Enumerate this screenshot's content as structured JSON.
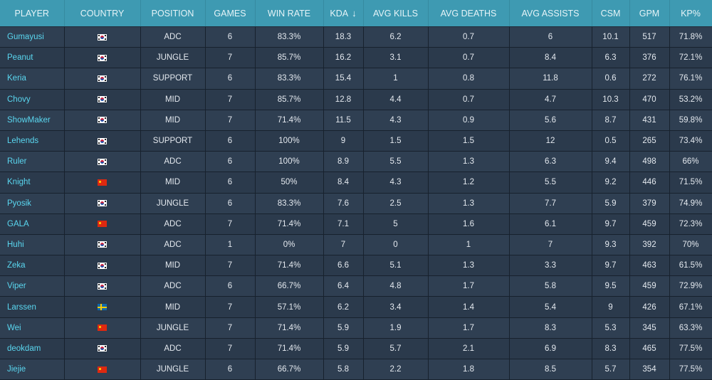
{
  "colors": {
    "header_bg": "#3e9ab2",
    "body_bg": "#2b3a4c",
    "player_link": "#5ad7f0"
  },
  "columns": [
    {
      "key": "player",
      "label": "PLAYER"
    },
    {
      "key": "country",
      "label": "COUNTRY"
    },
    {
      "key": "position",
      "label": "POSITION"
    },
    {
      "key": "games",
      "label": "GAMES"
    },
    {
      "key": "win_rate",
      "label": "WIN RATE"
    },
    {
      "key": "kda",
      "label": "KDA",
      "sort": "↓"
    },
    {
      "key": "avg_kills",
      "label": "AVG KILLS"
    },
    {
      "key": "avg_deaths",
      "label": "AVG DEATHS"
    },
    {
      "key": "avg_assists",
      "label": "AVG ASSISTS"
    },
    {
      "key": "csm",
      "label": "CSM"
    },
    {
      "key": "gpm",
      "label": "GPM"
    },
    {
      "key": "kp",
      "label": "KP%"
    }
  ],
  "rows": [
    {
      "player": "Gumayusi",
      "flag": "kr",
      "position": "ADC",
      "games": "6",
      "win_rate": "83.3%",
      "kda": "18.3",
      "avg_kills": "6.2",
      "avg_deaths": "0.7",
      "avg_assists": "6",
      "csm": "10.1",
      "gpm": "517",
      "kp": "71.8%"
    },
    {
      "player": "Peanut",
      "flag": "kr",
      "position": "JUNGLE",
      "games": "7",
      "win_rate": "85.7%",
      "kda": "16.2",
      "avg_kills": "3.1",
      "avg_deaths": "0.7",
      "avg_assists": "8.4",
      "csm": "6.3",
      "gpm": "376",
      "kp": "72.1%"
    },
    {
      "player": "Keria",
      "flag": "kr",
      "position": "SUPPORT",
      "games": "6",
      "win_rate": "83.3%",
      "kda": "15.4",
      "avg_kills": "1",
      "avg_deaths": "0.8",
      "avg_assists": "11.8",
      "csm": "0.6",
      "gpm": "272",
      "kp": "76.1%"
    },
    {
      "player": "Chovy",
      "flag": "kr",
      "position": "MID",
      "games": "7",
      "win_rate": "85.7%",
      "kda": "12.8",
      "avg_kills": "4.4",
      "avg_deaths": "0.7",
      "avg_assists": "4.7",
      "csm": "10.3",
      "gpm": "470",
      "kp": "53.2%"
    },
    {
      "player": "ShowMaker",
      "flag": "kr",
      "position": "MID",
      "games": "7",
      "win_rate": "71.4%",
      "kda": "11.5",
      "avg_kills": "4.3",
      "avg_deaths": "0.9",
      "avg_assists": "5.6",
      "csm": "8.7",
      "gpm": "431",
      "kp": "59.8%"
    },
    {
      "player": "Lehends",
      "flag": "kr",
      "position": "SUPPORT",
      "games": "6",
      "win_rate": "100%",
      "kda": "9",
      "avg_kills": "1.5",
      "avg_deaths": "1.5",
      "avg_assists": "12",
      "csm": "0.5",
      "gpm": "265",
      "kp": "73.4%"
    },
    {
      "player": "Ruler",
      "flag": "kr",
      "position": "ADC",
      "games": "6",
      "win_rate": "100%",
      "kda": "8.9",
      "avg_kills": "5.5",
      "avg_deaths": "1.3",
      "avg_assists": "6.3",
      "csm": "9.4",
      "gpm": "498",
      "kp": "66%"
    },
    {
      "player": "Knight",
      "flag": "cn",
      "position": "MID",
      "games": "6",
      "win_rate": "50%",
      "kda": "8.4",
      "avg_kills": "4.3",
      "avg_deaths": "1.2",
      "avg_assists": "5.5",
      "csm": "9.2",
      "gpm": "446",
      "kp": "71.5%"
    },
    {
      "player": "Pyosik",
      "flag": "kr",
      "position": "JUNGLE",
      "games": "6",
      "win_rate": "83.3%",
      "kda": "7.6",
      "avg_kills": "2.5",
      "avg_deaths": "1.3",
      "avg_assists": "7.7",
      "csm": "5.9",
      "gpm": "379",
      "kp": "74.9%"
    },
    {
      "player": "GALA",
      "flag": "cn",
      "position": "ADC",
      "games": "7",
      "win_rate": "71.4%",
      "kda": "7.1",
      "avg_kills": "5",
      "avg_deaths": "1.6",
      "avg_assists": "6.1",
      "csm": "9.7",
      "gpm": "459",
      "kp": "72.3%"
    },
    {
      "player": "Huhi",
      "flag": "kr",
      "position": "ADC",
      "games": "1",
      "win_rate": "0%",
      "kda": "7",
      "avg_kills": "0",
      "avg_deaths": "1",
      "avg_assists": "7",
      "csm": "9.3",
      "gpm": "392",
      "kp": "70%"
    },
    {
      "player": "Zeka",
      "flag": "kr",
      "position": "MID",
      "games": "7",
      "win_rate": "71.4%",
      "kda": "6.6",
      "avg_kills": "5.1",
      "avg_deaths": "1.3",
      "avg_assists": "3.3",
      "csm": "9.7",
      "gpm": "463",
      "kp": "61.5%"
    },
    {
      "player": "Viper",
      "flag": "kr",
      "position": "ADC",
      "games": "6",
      "win_rate": "66.7%",
      "kda": "6.4",
      "avg_kills": "4.8",
      "avg_deaths": "1.7",
      "avg_assists": "5.8",
      "csm": "9.5",
      "gpm": "459",
      "kp": "72.9%"
    },
    {
      "player": "Larssen",
      "flag": "se",
      "position": "MID",
      "games": "7",
      "win_rate": "57.1%",
      "kda": "6.2",
      "avg_kills": "3.4",
      "avg_deaths": "1.4",
      "avg_assists": "5.4",
      "csm": "9",
      "gpm": "426",
      "kp": "67.1%"
    },
    {
      "player": "Wei",
      "flag": "cn",
      "position": "JUNGLE",
      "games": "7",
      "win_rate": "71.4%",
      "kda": "5.9",
      "avg_kills": "1.9",
      "avg_deaths": "1.7",
      "avg_assists": "8.3",
      "csm": "5.3",
      "gpm": "345",
      "kp": "63.3%"
    },
    {
      "player": "deokdam",
      "flag": "kr",
      "position": "ADC",
      "games": "7",
      "win_rate": "71.4%",
      "kda": "5.9",
      "avg_kills": "5.7",
      "avg_deaths": "2.1",
      "avg_assists": "6.9",
      "csm": "8.3",
      "gpm": "465",
      "kp": "77.5%"
    },
    {
      "player": "Jiejie",
      "flag": "cn",
      "position": "JUNGLE",
      "games": "6",
      "win_rate": "66.7%",
      "kda": "5.8",
      "avg_kills": "2.2",
      "avg_deaths": "1.8",
      "avg_assists": "8.5",
      "csm": "5.7",
      "gpm": "354",
      "kp": "77.5%"
    }
  ]
}
